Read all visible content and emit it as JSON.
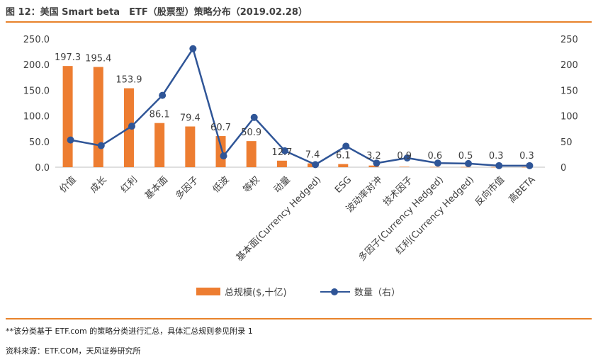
{
  "header": {
    "title": "图 12：美国 Smart beta　ETF（股票型）策略分布（2019.02.28）"
  },
  "footer": {
    "note": "**该分类基于 ETF.com 的策略分类进行汇总，具体汇总规则参见附录 1",
    "source": "资料来源：ETF.COM，天风证券研究所"
  },
  "colors": {
    "bar": "#ED7D31",
    "line": "#2F5597",
    "accent_rule": "#E8822A",
    "grid": "#D9D9D9"
  },
  "chart_data": {
    "type": "bar",
    "categories": [
      "价值",
      "成长",
      "红利",
      "基本面",
      "多因子",
      "低波",
      "等权",
      "动量",
      "基本面(Currency Hedged)",
      "ESG",
      "波动率对冲",
      "技术因子",
      "多因子(Currency Hedged)",
      "红利(Currency Hedged)",
      "反向市值",
      "高BETA"
    ],
    "series": [
      {
        "name": "总规模($,十亿)",
        "kind": "bar",
        "axis": "left",
        "values": [
          197.3,
          195.4,
          153.9,
          86.1,
          79.4,
          60.7,
          50.9,
          12.7,
          7.4,
          6.1,
          3.2,
          0.9,
          0.6,
          0.5,
          0.3,
          0.3
        ],
        "labels": [
          "197.3",
          "195.4",
          "153.9",
          "86.1",
          "79.4",
          "60.7",
          "50.9",
          "12.7",
          "7.4",
          "6.1",
          "3.2",
          "0.9",
          "0.6",
          "0.5",
          "0.3",
          "0.3"
        ]
      },
      {
        "name": "数量（右）",
        "kind": "line",
        "axis": "right",
        "values": [
          53,
          42,
          80,
          140,
          231,
          22,
          97,
          32,
          5,
          41,
          8,
          18,
          8,
          7,
          3,
          3
        ]
      }
    ],
    "y_left": {
      "min": 0,
      "max": 250,
      "ticks": [
        "0.0",
        "50.0",
        "100.0",
        "150.0",
        "200.0",
        "250.0"
      ]
    },
    "y_right": {
      "min": 0,
      "max": 250,
      "ticks": [
        "0",
        "50",
        "100",
        "150",
        "200",
        "250"
      ]
    },
    "grid": false,
    "legend": "bottom"
  }
}
